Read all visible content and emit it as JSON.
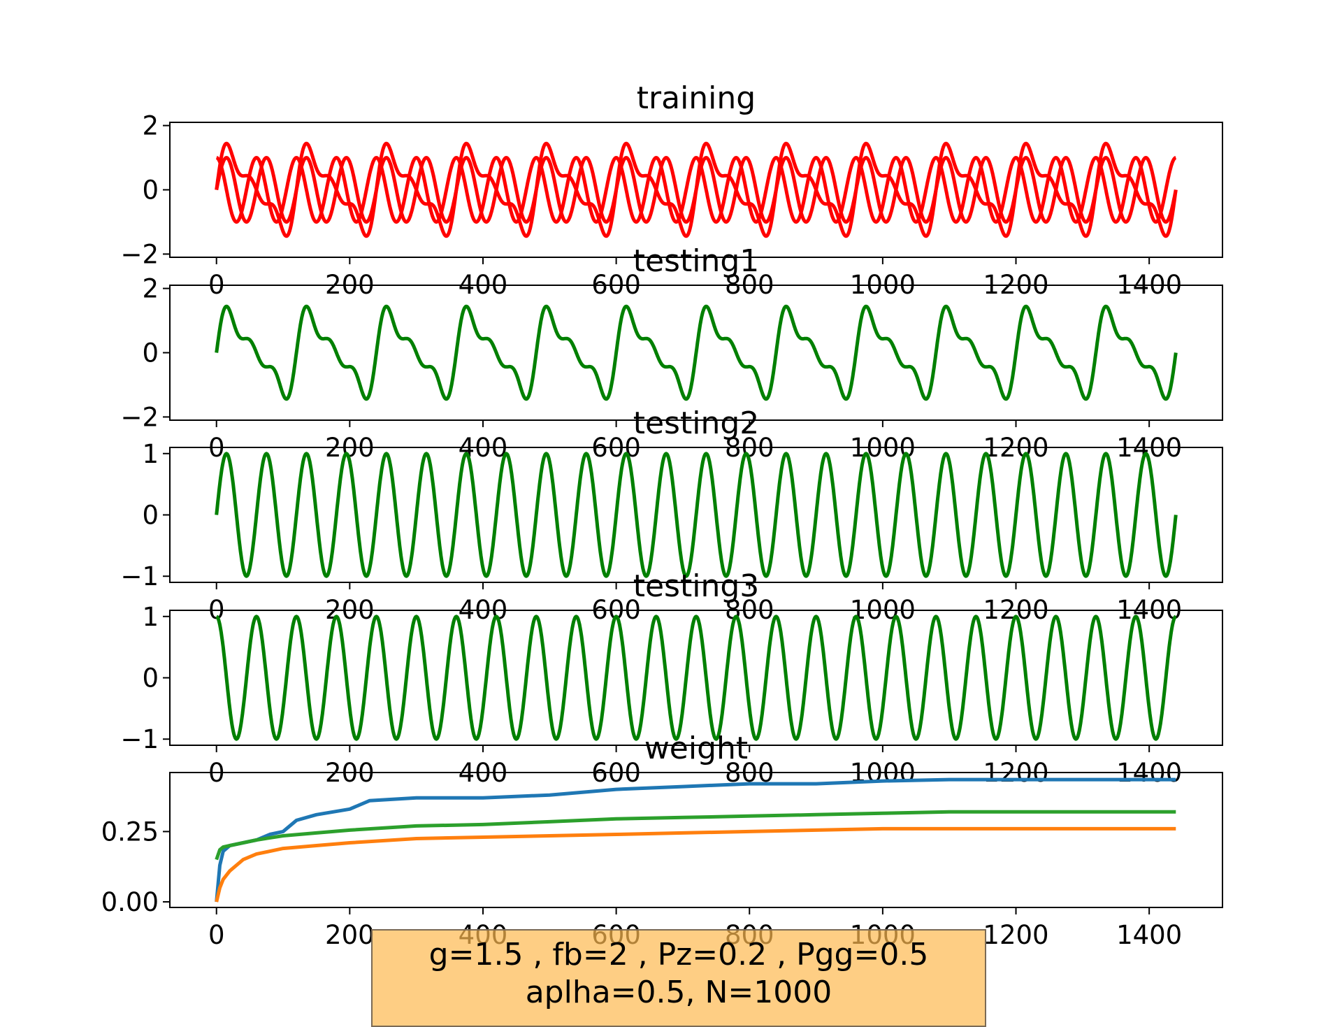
{
  "chart_data": [
    {
      "type": "line",
      "title": "training",
      "xlim": [
        -70,
        1510
      ],
      "ylim": [
        -2.1,
        2.1
      ],
      "xticks": [
        "0",
        "200",
        "400",
        "600",
        "800",
        "1000",
        "1200",
        "1400"
      ],
      "yticks": [
        "−2",
        "0",
        "2"
      ],
      "series": [
        {
          "color": "#ff0000",
          "expression": "sin(t) + sin(2t)/2 + sin(3t)/3",
          "period": 120,
          "x": [
            0,
            1440
          ],
          "phase_samples": [
            0,
            1.8,
            0.9,
            1.1,
            0.3,
            -0.3,
            -1.1,
            -0.9,
            -1.8
          ]
        },
        {
          "color": "#ff0000",
          "expression": "sin(t)",
          "period": 60,
          "x": [
            0,
            1440
          ],
          "peak": 1,
          "trough": -1
        },
        {
          "color": "#ff0000",
          "expression": "cos(t)",
          "period": 60,
          "x": [
            0,
            1440
          ],
          "peak": 1,
          "trough": -1
        }
      ]
    },
    {
      "type": "line",
      "title": "testing1",
      "xlim": [
        -70,
        1510
      ],
      "ylim": [
        -2.1,
        2.1
      ],
      "xticks": [
        "0",
        "200",
        "400",
        "600",
        "800",
        "1000",
        "1200",
        "1400"
      ],
      "yticks": [
        "−2",
        "0",
        "2"
      ],
      "series": [
        {
          "color": "#008000",
          "expression": "sin(t) + sin(2t)/2 + sin(3t)/3",
          "period": 120,
          "x": [
            0,
            1440
          ]
        }
      ]
    },
    {
      "type": "line",
      "title": "testing2",
      "xlim": [
        -70,
        1510
      ],
      "ylim": [
        -1.1,
        1.1
      ],
      "xticks": [
        "0",
        "200",
        "400",
        "600",
        "800",
        "1000",
        "1200",
        "1400"
      ],
      "yticks": [
        "−1",
        "0",
        "1"
      ],
      "series": [
        {
          "color": "#008000",
          "expression": "sin(t)",
          "period": 60,
          "x": [
            0,
            1440
          ]
        }
      ]
    },
    {
      "type": "line",
      "title": "testing3",
      "xlim": [
        -70,
        1510
      ],
      "ylim": [
        -1.1,
        1.1
      ],
      "xticks": [
        "0",
        "200",
        "400",
        "600",
        "800",
        "1000",
        "1200",
        "1400"
      ],
      "yticks": [
        "−1",
        "0",
        "1"
      ],
      "series": [
        {
          "color": "#008000",
          "expression": "cos(t)",
          "period": 60,
          "x": [
            0,
            1440
          ]
        }
      ]
    },
    {
      "type": "line",
      "title": "weight",
      "xlim": [
        -70,
        1510
      ],
      "ylim": [
        -0.02,
        0.46
      ],
      "xticks": [
        "0",
        "200",
        "400",
        "600",
        "800",
        "1000",
        "1200",
        "1400"
      ],
      "yticks": [
        "0.00",
        "0.25"
      ],
      "series": [
        {
          "color": "#1f77b4",
          "x": [
            0,
            5,
            10,
            20,
            40,
            60,
            80,
            100,
            120,
            150,
            200,
            230,
            300,
            400,
            500,
            600,
            700,
            800,
            900,
            1000,
            1100,
            1200,
            1300,
            1440
          ],
          "y": [
            0.0,
            0.13,
            0.18,
            0.2,
            0.21,
            0.22,
            0.24,
            0.25,
            0.29,
            0.31,
            0.33,
            0.36,
            0.37,
            0.37,
            0.38,
            0.4,
            0.41,
            0.42,
            0.42,
            0.43,
            0.435,
            0.435,
            0.435,
            0.435
          ]
        },
        {
          "color": "#ff7f0e",
          "x": [
            0,
            5,
            10,
            20,
            40,
            60,
            100,
            150,
            200,
            300,
            400,
            500,
            600,
            700,
            800,
            900,
            1000,
            1100,
            1200,
            1300,
            1440
          ],
          "y": [
            0.0,
            0.05,
            0.08,
            0.11,
            0.15,
            0.17,
            0.19,
            0.2,
            0.21,
            0.225,
            0.23,
            0.235,
            0.24,
            0.245,
            0.25,
            0.255,
            0.26,
            0.26,
            0.26,
            0.26,
            0.26
          ]
        },
        {
          "color": "#2ca02c",
          "x": [
            0,
            5,
            10,
            20,
            40,
            60,
            100,
            150,
            200,
            300,
            400,
            500,
            600,
            700,
            800,
            900,
            1000,
            1100,
            1200,
            1300,
            1440
          ],
          "y": [
            0.15,
            0.185,
            0.195,
            0.2,
            0.21,
            0.22,
            0.235,
            0.245,
            0.255,
            0.27,
            0.275,
            0.285,
            0.295,
            0.3,
            0.305,
            0.31,
            0.315,
            0.32,
            0.32,
            0.32,
            0.32
          ]
        }
      ]
    }
  ],
  "annotation": {
    "line1": "g=1.5 , fb=2 , Pz=0.2 , Pgg=0.5",
    "line2": "aplha=0.5, N=1000"
  }
}
